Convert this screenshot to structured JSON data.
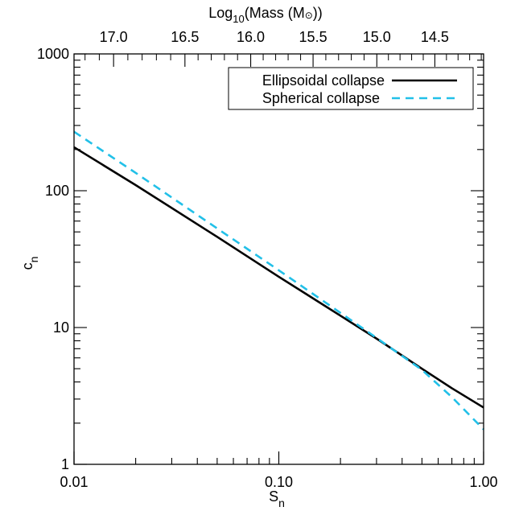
{
  "chart_data": {
    "type": "line",
    "xscale": "log",
    "yscale": "log",
    "xlim": [
      0.01,
      1.0
    ],
    "ylim": [
      1,
      1000
    ],
    "xticks": [
      {
        "value": 0.01,
        "label": "0.01"
      },
      {
        "value": 0.1,
        "label": "0.10"
      },
      {
        "value": 1.0,
        "label": "1.00"
      }
    ],
    "yticks": [
      {
        "value": 1,
        "label": "1"
      },
      {
        "value": 10,
        "label": "10"
      },
      {
        "value": 100,
        "label": "100"
      },
      {
        "value": 1000,
        "label": "1000"
      }
    ],
    "xlabel": {
      "base": "S",
      "sub": "n"
    },
    "ylabel": {
      "base": "c",
      "sub": "n"
    },
    "top_axis": {
      "label_pre": "Log",
      "label_sub": "10",
      "label_post": "(Mass (M",
      "label_sym": "⊙",
      "label_end": "))",
      "ticks": [
        {
          "label": "17.0",
          "x": 0.0156
        },
        {
          "label": "16.5",
          "x": 0.0348
        },
        {
          "label": "16.0",
          "x": 0.0729
        },
        {
          "label": "15.5",
          "x": 0.147
        },
        {
          "label": "15.0",
          "x": 0.301
        },
        {
          "label": "14.5",
          "x": 0.578
        }
      ]
    },
    "grid": false,
    "legend_position": "top-right",
    "series": [
      {
        "name": "Ellipsoidal collapse",
        "color": "#000000",
        "style": "solid",
        "x": [
          0.01,
          0.02,
          0.05,
          0.1,
          0.2,
          0.3,
          0.5,
          0.7,
          1.0
        ],
        "y": [
          208,
          110,
          46,
          23.5,
          12.2,
          8.3,
          5.0,
          3.6,
          2.6
        ]
      },
      {
        "name": "Spherical collapse",
        "color": "#22c0e8",
        "style": "dashed",
        "x": [
          0.01,
          0.02,
          0.05,
          0.1,
          0.2,
          0.3,
          0.5,
          0.7,
          1.0
        ],
        "y": [
          270,
          135,
          53,
          26.2,
          12.8,
          8.4,
          4.9,
          3.1,
          1.8
        ]
      }
    ]
  }
}
